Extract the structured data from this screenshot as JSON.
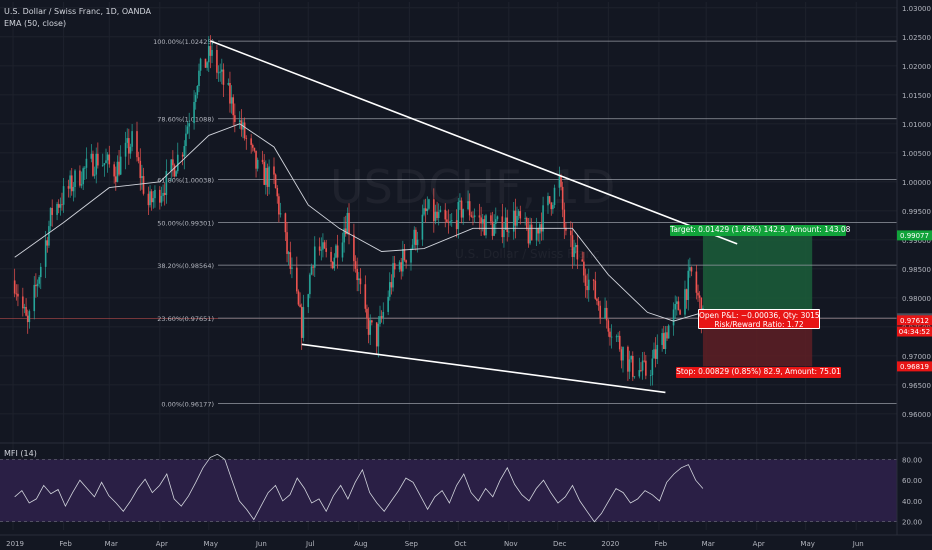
{
  "header": {
    "line1": "U.S. Dollar / Swiss Franc, 1D, OANDA",
    "line2": "EMA (50, close)"
  },
  "watermark": {
    "symbol": "USDCHF, 1D",
    "description": "U.S. Dollar / Swiss Franc"
  },
  "colors": {
    "background": "#131722",
    "up_candle": "#26a69a",
    "down_candle": "#ef5350",
    "target_zone": "#1b5e3a",
    "stop_zone": "#5e1f24",
    "target_label": "#11a33a",
    "stop_label": "#e81515",
    "mfi_band": "#2a1f45"
  },
  "chart_data": [
    {
      "type": "candlestick",
      "title": "U.S. Dollar / Swiss Franc, 1D, OANDA",
      "ylim": [
        0.9555,
        1.031
      ],
      "y_ticks": [
        "1.03000",
        "1.02500",
        "1.02000",
        "1.01500",
        "1.01000",
        "1.00500",
        "1.00000",
        "0.99500",
        "0.99000",
        "0.98500",
        "0.98000",
        "0.97500",
        "0.97000",
        "0.96500",
        "0.96000"
      ],
      "x_ticks": [
        "2019",
        "Feb",
        "Mar",
        "Apr",
        "May",
        "Jun",
        "Jul",
        "Aug",
        "Sep",
        "Oct",
        "Nov",
        "Dec",
        "2020",
        "Feb",
        "Mar",
        "Apr",
        "May",
        "Jun"
      ],
      "price_path": [
        {
          "date": "2019-01-02",
          "close": 0.983
        },
        {
          "date": "2019-01-10",
          "close": 0.975
        },
        {
          "date": "2019-01-25",
          "close": 0.995
        },
        {
          "date": "2019-02-10",
          "close": 1.001
        },
        {
          "date": "2019-02-22",
          "close": 1.004
        },
        {
          "date": "2019-03-05",
          "close": 1.002
        },
        {
          "date": "2019-03-15",
          "close": 1.007
        },
        {
          "date": "2019-03-25",
          "close": 0.996
        },
        {
          "date": "2019-04-05",
          "close": 1.0
        },
        {
          "date": "2019-04-15",
          "close": 1.006
        },
        {
          "date": "2019-04-24",
          "close": 1.018
        },
        {
          "date": "2019-05-02",
          "close": 1.022
        },
        {
          "date": "2019-05-10",
          "close": 1.017
        },
        {
          "date": "2019-05-20",
          "close": 1.01
        },
        {
          "date": "2019-05-31",
          "close": 1.002
        },
        {
          "date": "2019-06-10",
          "close": 1.0
        },
        {
          "date": "2019-06-20",
          "close": 0.985
        },
        {
          "date": "2019-06-27",
          "close": 0.975
        },
        {
          "date": "2019-07-05",
          "close": 0.989
        },
        {
          "date": "2019-07-15",
          "close": 0.986
        },
        {
          "date": "2019-07-25",
          "close": 0.994
        },
        {
          "date": "2019-08-05",
          "close": 0.976
        },
        {
          "date": "2019-08-12",
          "close": 0.973
        },
        {
          "date": "2019-08-22",
          "close": 0.984
        },
        {
          "date": "2019-09-02",
          "close": 0.989
        },
        {
          "date": "2019-09-12",
          "close": 0.995
        },
        {
          "date": "2019-09-25",
          "close": 0.992
        },
        {
          "date": "2019-10-05",
          "close": 0.996
        },
        {
          "date": "2019-10-15",
          "close": 0.993
        },
        {
          "date": "2019-10-25",
          "close": 0.992
        },
        {
          "date": "2019-11-05",
          "close": 0.994
        },
        {
          "date": "2019-11-15",
          "close": 0.99
        },
        {
          "date": "2019-11-25",
          "close": 0.996
        },
        {
          "date": "2019-12-02",
          "close": 1.0
        },
        {
          "date": "2019-12-06",
          "close": 0.99
        },
        {
          "date": "2019-12-15",
          "close": 0.986
        },
        {
          "date": "2019-12-28",
          "close": 0.978
        },
        {
          "date": "2020-01-08",
          "close": 0.972
        },
        {
          "date": "2020-01-15",
          "close": 0.968
        },
        {
          "date": "2020-01-25",
          "close": 0.967
        },
        {
          "date": "2020-02-05",
          "close": 0.974
        },
        {
          "date": "2020-02-14",
          "close": 0.979
        },
        {
          "date": "2020-02-21",
          "close": 0.984
        },
        {
          "date": "2020-02-26",
          "close": 0.979
        },
        {
          "date": "2020-02-28",
          "close": 0.9761
        }
      ],
      "ema_50_path": [
        {
          "date": "2019-01-02",
          "value": 0.987
        },
        {
          "date": "2019-02-01",
          "value": 0.993
        },
        {
          "date": "2019-03-01",
          "value": 0.999
        },
        {
          "date": "2019-04-01",
          "value": 1.0
        },
        {
          "date": "2019-05-01",
          "value": 1.008
        },
        {
          "date": "2019-05-20",
          "value": 1.01
        },
        {
          "date": "2019-06-10",
          "value": 1.006
        },
        {
          "date": "2019-07-01",
          "value": 0.996
        },
        {
          "date": "2019-07-20",
          "value": 0.992
        },
        {
          "date": "2019-08-15",
          "value": 0.988
        },
        {
          "date": "2019-09-10",
          "value": 0.9885
        },
        {
          "date": "2019-10-10",
          "value": 0.992
        },
        {
          "date": "2019-11-10",
          "value": 0.992
        },
        {
          "date": "2019-12-10",
          "value": 0.992
        },
        {
          "date": "2020-01-01",
          "value": 0.984
        },
        {
          "date": "2020-01-25",
          "value": 0.9775
        },
        {
          "date": "2020-02-10",
          "value": 0.976
        },
        {
          "date": "2020-02-28",
          "value": 0.9775
        }
      ],
      "fibonacci": [
        {
          "label": "100.00%(1.02425)",
          "price": 1.02425
        },
        {
          "label": "78.60%(1.01088)",
          "price": 1.01088
        },
        {
          "label": "61.80%(1.00038)",
          "price": 1.00038
        },
        {
          "label": "50.00%(0.99301)",
          "price": 0.99301
        },
        {
          "label": "38.20%(0.98564)",
          "price": 0.98564
        },
        {
          "label": "23.60%(0.97651)",
          "price": 0.97651
        },
        {
          "label": "0.00%(0.96177)",
          "price": 0.96177
        }
      ],
      "trendlines": [
        {
          "from": {
            "date": "2019-05-02",
            "price": 1.0243
          },
          "to": {
            "date": "2020-03-20",
            "price": 0.9893
          }
        },
        {
          "from": {
            "date": "2019-06-27",
            "price": 0.972
          },
          "to": {
            "date": "2020-02-05",
            "price": 0.9637
          }
        }
      ],
      "position": {
        "target_price": 0.99077,
        "entry_price": 0.97648,
        "stop_price": 0.96819,
        "start_date": "2020-02-28",
        "end_date": "2020-05-05",
        "target_text": "Target: 0.01429 (1.46%) 142.9, Amount: 143.08",
        "stop_text": "Stop: 0.00829 (0.85%) 82.9, Amount: 75.01",
        "open_text_1": "Open P&L: −0.00036, Qty: 3015",
        "open_text_2": "Risk/Reward Ratio: 1.72"
      },
      "price_labels": [
        {
          "text": "0.99077",
          "price": 0.99077,
          "color": "#11a33a"
        },
        {
          "text": "0.97648",
          "price": 0.97648,
          "color": "#4a4e5a"
        },
        {
          "text": "0.97612",
          "price": 0.97612,
          "color": "#e81515"
        },
        {
          "text": "04:34:52",
          "price": 0.9742,
          "color": "#e81515"
        },
        {
          "text": "0.96819",
          "price": 0.96819,
          "color": "#e81515"
        }
      ]
    },
    {
      "type": "line",
      "title": "MFI (14)",
      "ylim": [
        12,
        92
      ],
      "y_ticks": [
        "80.00",
        "60.00",
        "40.00",
        "20.00"
      ],
      "band": [
        20,
        80
      ],
      "values": [
        44,
        50,
        38,
        42,
        55,
        47,
        51,
        35,
        48,
        60,
        52,
        44,
        58,
        45,
        38,
        30,
        40,
        52,
        61,
        48,
        55,
        66,
        42,
        35,
        45,
        58,
        72,
        82,
        85,
        80,
        60,
        40,
        32,
        22,
        35,
        48,
        55,
        40,
        46,
        62,
        52,
        38,
        42,
        30,
        45,
        55,
        42,
        58,
        70,
        48,
        38,
        30,
        40,
        50,
        62,
        58,
        45,
        32,
        44,
        50,
        38,
        55,
        66,
        48,
        40,
        52,
        44,
        60,
        72,
        56,
        46,
        40,
        52,
        60,
        48,
        38,
        44,
        55,
        40,
        30,
        20,
        28,
        40,
        52,
        48,
        38,
        42,
        50,
        46,
        40,
        58,
        66,
        72,
        75,
        60,
        52
      ]
    }
  ]
}
